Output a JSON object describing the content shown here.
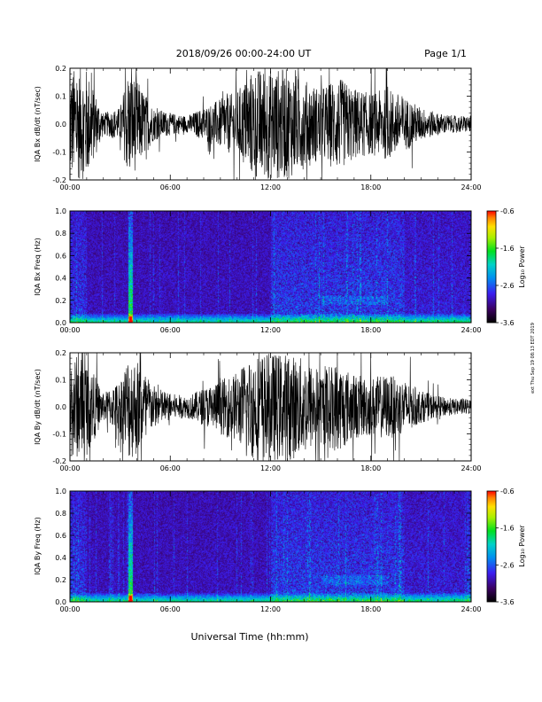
{
  "header": {
    "title": "2018/09/26  00:00-24:00 UT",
    "page": "Page 1/1"
  },
  "footer": {
    "xlabel": "Universal Time (hh:mm)"
  },
  "side_note": "ext Thu Sep 19 08:13 EDT 2019",
  "colorbar": {
    "label": "Log₁₀ Power",
    "ticks": [
      "-0.6",
      "-1.6",
      "-2.6",
      "-3.6"
    ],
    "range": [
      -3.6,
      -0.6
    ]
  },
  "x_ticks": [
    "00:00",
    "06:00",
    "12:00",
    "18:00",
    "24:00"
  ],
  "chart_data": [
    {
      "type": "line",
      "ylabel": "IQA Bx dB/dt (nT/sec)",
      "ylim": [
        -0.2,
        0.2
      ],
      "y_ticks": [
        "0.2",
        "0.1",
        "0.0",
        "-0.1",
        "-0.2"
      ],
      "x_hours": [
        0,
        1,
        2,
        3,
        3.5,
        4,
        5,
        6,
        7,
        8,
        9,
        10,
        11,
        12,
        13,
        14,
        15,
        16,
        17,
        18,
        19,
        20,
        21,
        22,
        23,
        24
      ],
      "amplitude": [
        0.2,
        0.2,
        0.04,
        0.06,
        0.2,
        0.16,
        0.06,
        0.04,
        0.03,
        0.06,
        0.09,
        0.12,
        0.2,
        0.2,
        0.2,
        0.16,
        0.13,
        0.17,
        0.13,
        0.11,
        0.13,
        0.1,
        0.06,
        0.04,
        0.03,
        0.03
      ]
    },
    {
      "type": "heatmap",
      "ylabel": "IQA Bx Freq (Hz)",
      "ylim": [
        0,
        1.0
      ],
      "y_ticks": [
        "1.0",
        "0.8",
        "0.6",
        "0.4",
        "0.2",
        "0.0"
      ],
      "zlim": [
        -3.6,
        -0.6
      ]
    },
    {
      "type": "line",
      "ylabel": "IQA By dB/dt (nT/sec)",
      "ylim": [
        -0.2,
        0.2
      ],
      "y_ticks": [
        "0.2",
        "0.1",
        "0.0",
        "-0.1",
        "-0.2"
      ],
      "x_hours": [
        0,
        1,
        2,
        3,
        3.5,
        4,
        5,
        6,
        7,
        8,
        9,
        10,
        11,
        12,
        13,
        14,
        15,
        16,
        17,
        18,
        19,
        20,
        21,
        22,
        23,
        24
      ],
      "amplitude": [
        0.2,
        0.18,
        0.05,
        0.1,
        0.2,
        0.18,
        0.08,
        0.05,
        0.04,
        0.07,
        0.1,
        0.13,
        0.2,
        0.2,
        0.2,
        0.18,
        0.14,
        0.17,
        0.12,
        0.11,
        0.12,
        0.1,
        0.06,
        0.04,
        0.03,
        0.03
      ]
    },
    {
      "type": "heatmap",
      "ylabel": "IQA By Freq (Hz)",
      "ylim": [
        0,
        1.0
      ],
      "y_ticks": [
        "1.0",
        "0.8",
        "0.6",
        "0.4",
        "0.2",
        "0.0"
      ],
      "zlim": [
        -3.6,
        -0.6
      ]
    }
  ]
}
